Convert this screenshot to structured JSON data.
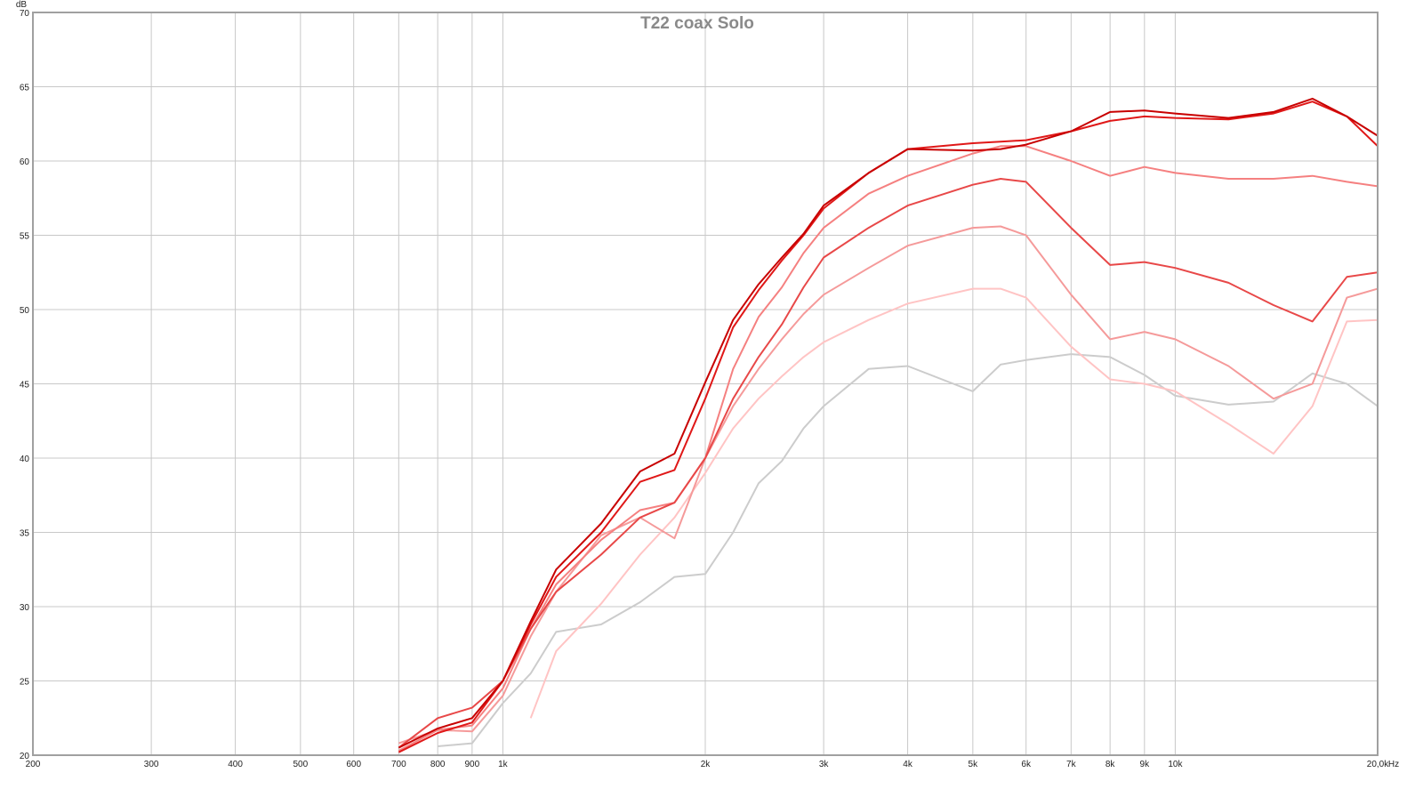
{
  "chart_data": {
    "type": "line",
    "title": "T22 coax Solo",
    "y_unit": "dB",
    "x_unit": "Hz",
    "log_x": true,
    "grid": true,
    "xlim": [
      200,
      20000
    ],
    "ylim": [
      20,
      70
    ],
    "xticks": [
      200,
      300,
      400,
      500,
      600,
      700,
      800,
      900,
      {
        "value": 1000,
        "label": "1k"
      },
      {
        "value": 2000,
        "label": "2k"
      },
      {
        "value": 3000,
        "label": "3k"
      },
      {
        "value": 4000,
        "label": "4k"
      },
      {
        "value": 5000,
        "label": "5k"
      },
      {
        "value": 6000,
        "label": "6k"
      },
      {
        "value": 7000,
        "label": "7k"
      },
      {
        "value": 8000,
        "label": "8k"
      },
      {
        "value": 9000,
        "label": "9k"
      },
      {
        "value": 10000,
        "label": "10k"
      },
      {
        "value": 20000,
        "label": "20,0k"
      }
    ],
    "yticks": [
      20,
      25,
      30,
      35,
      40,
      45,
      50,
      55,
      60,
      65,
      70
    ],
    "x": [
      700,
      800,
      900,
      1000,
      1100,
      1200,
      1400,
      1600,
      1800,
      2000,
      2200,
      2400,
      2600,
      2800,
      3000,
      3500,
      4000,
      5000,
      5500,
      6000,
      7000,
      8000,
      9000,
      10000,
      12000,
      14000,
      16000,
      18000,
      20000
    ],
    "series": [
      {
        "color": "#cccccc",
        "values": [
          null,
          20.6,
          20.8,
          23.5,
          25.5,
          28.3,
          28.8,
          30.3,
          32,
          32.2,
          35,
          38.3,
          39.8,
          42,
          43.5,
          46,
          46.2,
          44.5,
          46.3,
          46.6,
          47,
          46.8,
          45.6,
          44.2,
          43.6,
          43.8,
          45.7,
          45,
          43.5
        ]
      },
      {
        "color": "#ffc4c4",
        "values": [
          null,
          null,
          null,
          null,
          22.5,
          27,
          30.2,
          33.5,
          36,
          39,
          42,
          44,
          45.5,
          46.8,
          47.8,
          49.3,
          50.4,
          51.4,
          51.4,
          50.8,
          47.5,
          45.3,
          45,
          44.5,
          42.3,
          40.3,
          43.5,
          49.2,
          49.3
        ]
      },
      {
        "color": "#f59a9a",
        "values": [
          20.8,
          21.7,
          21.6,
          24,
          28,
          31,
          34.8,
          36,
          34.6,
          40,
          43.5,
          46,
          48,
          49.7,
          51,
          52.8,
          54.3,
          55.5,
          55.6,
          55,
          51,
          48,
          48.5,
          48,
          46.2,
          44,
          45,
          50.8,
          51.4
        ]
      },
      {
        "color": "#f58080",
        "values": [
          20.3,
          21.7,
          22,
          24.5,
          28.5,
          31.5,
          34.5,
          36.5,
          37,
          40,
          46,
          49.5,
          51.5,
          53.8,
          55.5,
          57.8,
          59,
          60.5,
          61,
          61,
          60,
          59,
          59.6,
          59.2,
          58.8,
          58.8,
          59,
          58.6,
          58.3
        ]
      },
      {
        "color": "#e84848",
        "values": [
          20.5,
          22.5,
          23.2,
          25,
          28.5,
          31,
          33.5,
          36,
          37,
          40,
          44,
          46.8,
          49,
          51.5,
          53.5,
          55.5,
          57,
          58.4,
          58.8,
          58.6,
          55.5,
          53,
          53.2,
          52.8,
          51.8,
          50.3,
          49.2,
          52.2,
          52.5
        ]
      },
      {
        "color": "#e01818",
        "values": [
          20.2,
          21.5,
          22.2,
          25,
          28.8,
          32,
          35,
          38.4,
          39.2,
          44,
          48.8,
          51.3,
          53.3,
          55,
          56.8,
          59.2,
          60.8,
          61.2,
          61.3,
          61.4,
          62,
          62.7,
          63,
          62.9,
          62.8,
          63.2,
          64,
          63,
          61
        ]
      },
      {
        "color": "#c80000",
        "values": [
          20.5,
          21.8,
          22.5,
          25,
          29,
          32.5,
          35.6,
          39.1,
          40.3,
          45.1,
          49.3,
          51.7,
          53.5,
          55.1,
          57,
          59.2,
          60.8,
          60.7,
          60.8,
          61.1,
          62,
          63.3,
          63.4,
          63.2,
          62.9,
          63.3,
          64.2,
          63,
          61.7
        ]
      }
    ]
  }
}
